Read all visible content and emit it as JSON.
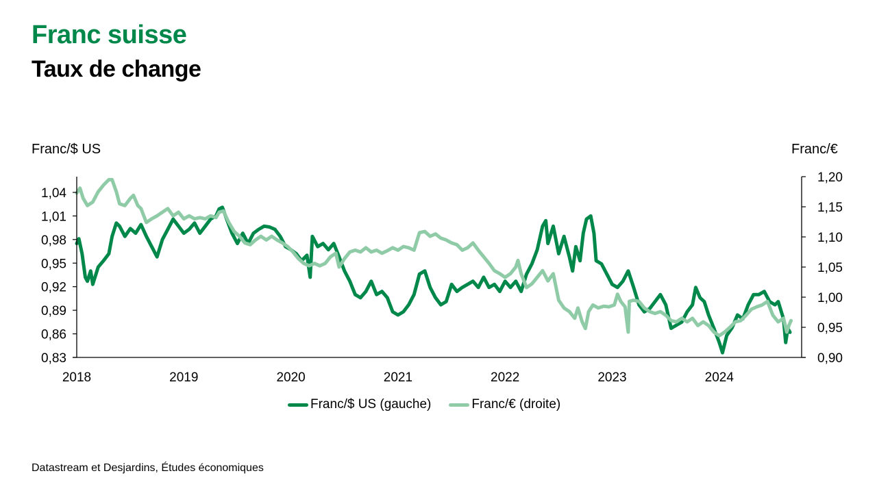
{
  "header": {
    "title": "Franc suisse",
    "subtitle": "Taux de change"
  },
  "source": "Datastream et Desjardins, Études économiques",
  "colors": {
    "title": "#00874A",
    "usd_series": "#00874A",
    "eur_series": "#8FCBA6",
    "axis": "#000000"
  },
  "chart_data": {
    "type": "line",
    "title": "Franc suisse — Taux de change",
    "xlabel": "",
    "ylabel_left": "Franc/$ US",
    "ylabel_right": "Franc/€",
    "xlim": [
      2018.0,
      2024.72
    ],
    "x_ticks": [
      2018,
      2019,
      2020,
      2021,
      2022,
      2023,
      2024
    ],
    "x_tick_labels": [
      "2018",
      "2019",
      "2020",
      "2021",
      "2022",
      "2023",
      "2024"
    ],
    "ylim_left": [
      0.83,
      1.06
    ],
    "y_ticks_left": [
      0.83,
      0.86,
      0.89,
      0.92,
      0.95,
      0.98,
      1.01,
      1.04
    ],
    "y_tick_labels_left": [
      "0,83",
      "0,86",
      "0,89",
      "0,92",
      "0,95",
      "0,98",
      "1,01",
      "1,04"
    ],
    "ylim_right": [
      0.9,
      1.2
    ],
    "y_ticks_right": [
      0.9,
      0.95,
      1.0,
      1.05,
      1.1,
      1.15,
      1.2
    ],
    "y_tick_labels_right": [
      "0,90",
      "0,95",
      "1,00",
      "1,05",
      "1,10",
      "1,15",
      "1,20"
    ],
    "grid": false,
    "legend_position": "bottom-center",
    "series": [
      {
        "name": "Franc/$ US (gauche)",
        "axis": "left",
        "color": "#00874A",
        "x": [
          2018.0,
          2018.02,
          2018.05,
          2018.08,
          2018.1,
          2018.13,
          2018.15,
          2018.2,
          2018.25,
          2018.3,
          2018.33,
          2018.37,
          2018.4,
          2018.45,
          2018.5,
          2018.55,
          2018.6,
          2018.65,
          2018.7,
          2018.75,
          2018.8,
          2018.85,
          2018.9,
          2018.95,
          2019.0,
          2019.05,
          2019.1,
          2019.15,
          2019.2,
          2019.25,
          2019.3,
          2019.33,
          2019.36,
          2019.4,
          2019.45,
          2019.5,
          2019.55,
          2019.6,
          2019.65,
          2019.7,
          2019.75,
          2019.8,
          2019.85,
          2019.9,
          2019.95,
          2020.0,
          2020.05,
          2020.1,
          2020.15,
          2020.18,
          2020.2,
          2020.25,
          2020.3,
          2020.35,
          2020.4,
          2020.45,
          2020.5,
          2020.55,
          2020.6,
          2020.65,
          2020.7,
          2020.75,
          2020.8,
          2020.85,
          2020.9,
          2020.95,
          2021.0,
          2021.05,
          2021.1,
          2021.15,
          2021.2,
          2021.25,
          2021.3,
          2021.35,
          2021.4,
          2021.45,
          2021.5,
          2021.55,
          2021.6,
          2021.65,
          2021.7,
          2021.75,
          2021.8,
          2021.85,
          2021.9,
          2021.95,
          2022.0,
          2022.05,
          2022.1,
          2022.15,
          2022.2,
          2022.25,
          2022.3,
          2022.35,
          2022.38,
          2022.4,
          2022.45,
          2022.5,
          2022.55,
          2022.6,
          2022.63,
          2022.66,
          2022.7,
          2022.73,
          2022.76,
          2022.8,
          2022.83,
          2022.85,
          2022.9,
          2022.95,
          2023.0,
          2023.05,
          2023.1,
          2023.15,
          2023.2,
          2023.25,
          2023.3,
          2023.35,
          2023.4,
          2023.45,
          2023.5,
          2023.55,
          2023.6,
          2023.65,
          2023.7,
          2023.75,
          2023.78,
          2023.82,
          2023.86,
          2023.9,
          2023.95,
          2024.0,
          2024.03,
          2024.07,
          2024.12,
          2024.17,
          2024.22,
          2024.27,
          2024.32,
          2024.37,
          2024.42,
          2024.47,
          2024.52,
          2024.55,
          2024.6,
          2024.62,
          2024.64,
          2024.66
        ],
        "values": [
          0.975,
          0.981,
          0.962,
          0.932,
          0.927,
          0.94,
          0.923,
          0.945,
          0.953,
          0.962,
          0.984,
          1.001,
          0.997,
          0.984,
          0.994,
          0.988,
          0.999,
          0.984,
          0.971,
          0.958,
          0.98,
          0.993,
          1.006,
          0.997,
          0.988,
          0.993,
          1.001,
          0.988,
          0.997,
          1.006,
          1.01,
          1.019,
          1.021,
          1.006,
          0.988,
          0.975,
          0.988,
          0.975,
          0.988,
          0.993,
          0.997,
          0.996,
          0.993,
          0.984,
          0.971,
          0.967,
          0.962,
          0.953,
          0.96,
          0.932,
          0.984,
          0.971,
          0.975,
          0.967,
          0.975,
          0.958,
          0.94,
          0.927,
          0.91,
          0.906,
          0.914,
          0.927,
          0.91,
          0.914,
          0.906,
          0.888,
          0.884,
          0.888,
          0.897,
          0.91,
          0.936,
          0.94,
          0.919,
          0.906,
          0.897,
          0.901,
          0.923,
          0.914,
          0.919,
          0.923,
          0.927,
          0.919,
          0.932,
          0.919,
          0.923,
          0.914,
          0.927,
          0.919,
          0.927,
          0.914,
          0.936,
          0.949,
          0.967,
          0.997,
          1.004,
          0.975,
          0.997,
          0.962,
          0.984,
          0.958,
          0.94,
          0.971,
          0.953,
          0.988,
          1.006,
          1.01,
          0.988,
          0.953,
          0.949,
          0.936,
          0.923,
          0.919,
          0.927,
          0.94,
          0.919,
          0.897,
          0.888,
          0.892,
          0.901,
          0.91,
          0.897,
          0.867,
          0.871,
          0.875,
          0.888,
          0.897,
          0.919,
          0.906,
          0.901,
          0.884,
          0.867,
          0.849,
          0.836,
          0.858,
          0.868,
          0.884,
          0.879,
          0.897,
          0.91,
          0.91,
          0.914,
          0.901,
          0.897,
          0.901,
          0.879,
          0.849,
          0.867,
          0.862
        ]
      },
      {
        "name": "Franc/€ (droite)",
        "axis": "right",
        "color": "#8FCBA6",
        "x": [
          2018.0,
          2018.03,
          2018.06,
          2018.1,
          2018.15,
          2018.2,
          2018.25,
          2018.3,
          2018.33,
          2018.37,
          2018.4,
          2018.45,
          2018.5,
          2018.53,
          2018.57,
          2018.6,
          2018.65,
          2018.7,
          2018.75,
          2018.8,
          2018.85,
          2018.9,
          2018.95,
          2019.0,
          2019.05,
          2019.1,
          2019.15,
          2019.2,
          2019.25,
          2019.3,
          2019.33,
          2019.37,
          2019.42,
          2019.47,
          2019.52,
          2019.57,
          2019.62,
          2019.67,
          2019.72,
          2019.77,
          2019.82,
          2019.87,
          2019.92,
          2019.97,
          2020.02,
          2020.07,
          2020.12,
          2020.17,
          2020.22,
          2020.27,
          2020.32,
          2020.37,
          2020.42,
          2020.45,
          2020.5,
          2020.55,
          2020.6,
          2020.65,
          2020.7,
          2020.75,
          2020.8,
          2020.85,
          2020.9,
          2020.95,
          2021.0,
          2021.05,
          2021.1,
          2021.15,
          2021.2,
          2021.25,
          2021.3,
          2021.35,
          2021.4,
          2021.45,
          2021.5,
          2021.55,
          2021.6,
          2021.65,
          2021.7,
          2021.75,
          2021.8,
          2021.85,
          2021.9,
          2021.95,
          2022.0,
          2022.05,
          2022.1,
          2022.12,
          2022.15,
          2022.2,
          2022.25,
          2022.3,
          2022.35,
          2022.4,
          2022.45,
          2022.5,
          2022.55,
          2022.6,
          2022.65,
          2022.68,
          2022.72,
          2022.75,
          2022.78,
          2022.82,
          2022.87,
          2022.92,
          2022.97,
          2023.02,
          2023.05,
          2023.08,
          2023.12,
          2023.15,
          2023.16,
          2023.2,
          2023.25,
          2023.3,
          2023.35,
          2023.4,
          2023.45,
          2023.5,
          2023.55,
          2023.6,
          2023.65,
          2023.7,
          2023.75,
          2023.8,
          2023.85,
          2023.9,
          2023.95,
          2024.0,
          2024.05,
          2024.1,
          2024.15,
          2024.2,
          2024.25,
          2024.3,
          2024.35,
          2024.4,
          2024.45,
          2024.5,
          2024.55,
          2024.6,
          2024.63,
          2024.65,
          2024.67
        ],
        "values": [
          1.173,
          1.181,
          1.164,
          1.152,
          1.158,
          1.175,
          1.186,
          1.195,
          1.195,
          1.175,
          1.155,
          1.152,
          1.164,
          1.169,
          1.152,
          1.147,
          1.124,
          1.13,
          1.135,
          1.141,
          1.147,
          1.135,
          1.141,
          1.13,
          1.135,
          1.13,
          1.132,
          1.13,
          1.135,
          1.132,
          1.141,
          1.143,
          1.124,
          1.109,
          1.101,
          1.09,
          1.087,
          1.095,
          1.101,
          1.095,
          1.101,
          1.095,
          1.09,
          1.084,
          1.075,
          1.064,
          1.056,
          1.052,
          1.056,
          1.052,
          1.056,
          1.067,
          1.073,
          1.05,
          1.064,
          1.075,
          1.078,
          1.075,
          1.082,
          1.075,
          1.078,
          1.073,
          1.077,
          1.082,
          1.078,
          1.084,
          1.082,
          1.078,
          1.107,
          1.109,
          1.101,
          1.105,
          1.098,
          1.095,
          1.09,
          1.087,
          1.078,
          1.082,
          1.09,
          1.078,
          1.067,
          1.056,
          1.044,
          1.039,
          1.033,
          1.039,
          1.05,
          1.061,
          1.039,
          1.016,
          1.022,
          1.033,
          1.044,
          1.027,
          1.039,
          0.995,
          0.982,
          0.976,
          0.965,
          0.982,
          0.959,
          0.948,
          0.976,
          0.987,
          0.982,
          0.985,
          0.984,
          0.987,
          1.005,
          0.993,
          0.984,
          0.942,
          0.993,
          0.995,
          0.993,
          0.982,
          0.976,
          0.973,
          0.976,
          0.97,
          0.961,
          0.959,
          0.965,
          0.959,
          0.965,
          0.953,
          0.959,
          0.953,
          0.942,
          0.936,
          0.942,
          0.95,
          0.959,
          0.961,
          0.97,
          0.98,
          0.984,
          0.987,
          0.993,
          0.97,
          0.959,
          0.965,
          0.942,
          0.953,
          0.961
        ]
      }
    ]
  }
}
